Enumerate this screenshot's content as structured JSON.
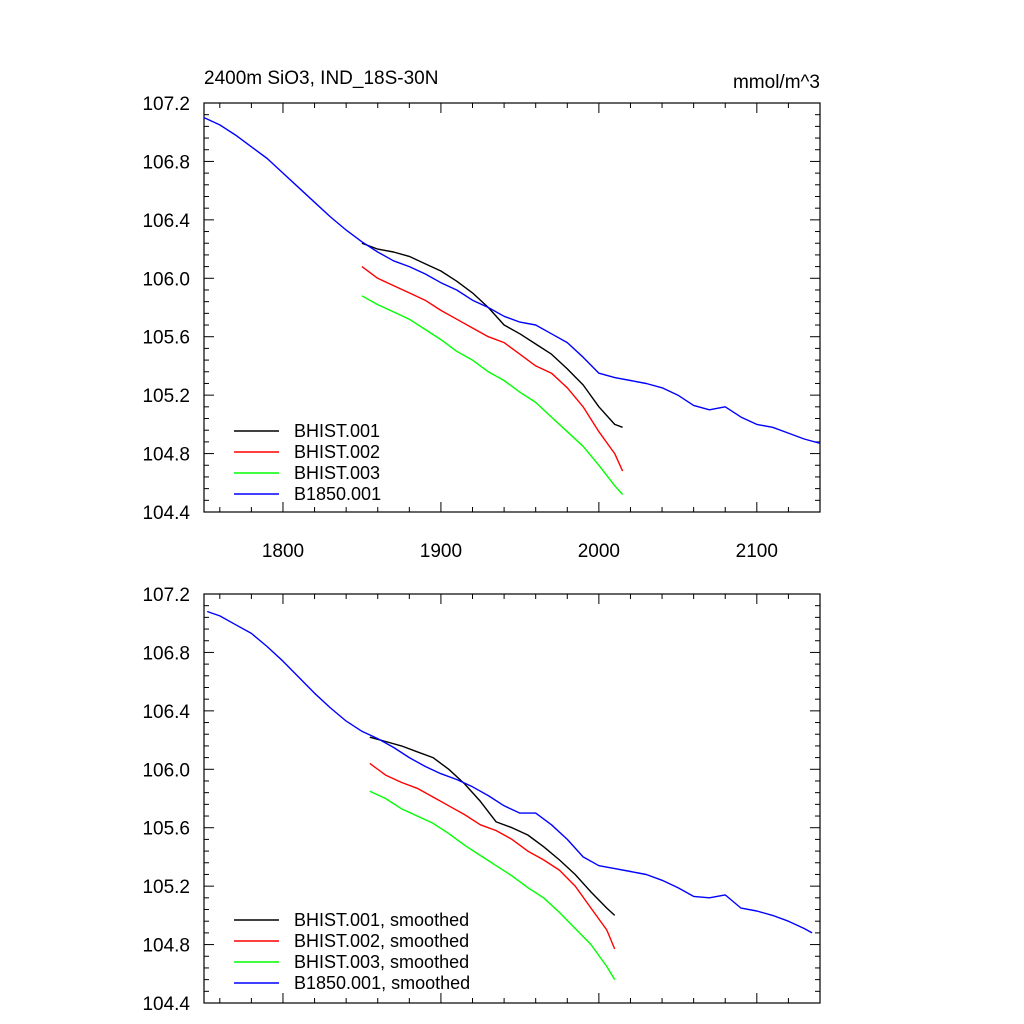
{
  "panels": [
    {
      "id": "top",
      "title_left": "2400m SiO3, IND_18S-30N",
      "title_right": "mmol/m^3",
      "show_xtick_labels": true,
      "chart_data": {
        "type": "line",
        "title": "2400m SiO3, IND_18S-30N",
        "units": "mmol/m^3",
        "xlim": [
          1750,
          2140
        ],
        "ylim": [
          104.4,
          107.2
        ],
        "xticks": [
          "1800",
          "1900",
          "2000",
          "2100"
        ],
        "yticks": [
          "104.4",
          "104.8",
          "105.2",
          "105.6",
          "106.0",
          "106.4",
          "106.8",
          "107.2"
        ],
        "legend_position": "bottom-left",
        "grid": false,
        "series": [
          {
            "name": "BHIST.001",
            "color": "#000000",
            "x": [
              1850,
              1860,
              1870,
              1880,
              1890,
              1900,
              1910,
              1920,
              1930,
              1940,
              1950,
              1960,
              1970,
              1980,
              1990,
              2000,
              2010,
              2015
            ],
            "y": [
              106.24,
              106.2,
              106.18,
              106.15,
              106.1,
              106.05,
              105.98,
              105.9,
              105.8,
              105.68,
              105.62,
              105.55,
              105.48,
              105.38,
              105.27,
              105.12,
              105.0,
              104.98
            ]
          },
          {
            "name": "BHIST.002",
            "color": "#ff0000",
            "x": [
              1850,
              1860,
              1870,
              1880,
              1890,
              1900,
              1910,
              1920,
              1930,
              1940,
              1950,
              1960,
              1970,
              1980,
              1990,
              2000,
              2010,
              2015
            ],
            "y": [
              106.08,
              106.0,
              105.95,
              105.9,
              105.85,
              105.78,
              105.72,
              105.66,
              105.6,
              105.56,
              105.48,
              105.4,
              105.35,
              105.25,
              105.12,
              104.95,
              104.8,
              104.68
            ]
          },
          {
            "name": "BHIST.003",
            "color": "#00ff00",
            "x": [
              1850,
              1860,
              1870,
              1880,
              1890,
              1900,
              1910,
              1920,
              1930,
              1940,
              1950,
              1960,
              1970,
              1980,
              1990,
              2000,
              2010,
              2015
            ],
            "y": [
              105.88,
              105.82,
              105.77,
              105.72,
              105.65,
              105.58,
              105.5,
              105.44,
              105.36,
              105.3,
              105.22,
              105.15,
              105.05,
              104.95,
              104.85,
              104.72,
              104.58,
              104.52
            ]
          },
          {
            "name": "B1850.001",
            "color": "#0000ff",
            "x": [
              1750,
              1760,
              1770,
              1780,
              1790,
              1800,
              1810,
              1820,
              1830,
              1840,
              1850,
              1860,
              1870,
              1880,
              1890,
              1900,
              1910,
              1920,
              1930,
              1940,
              1950,
              1960,
              1970,
              1980,
              1990,
              2000,
              2010,
              2020,
              2030,
              2040,
              2050,
              2060,
              2070,
              2080,
              2090,
              2100,
              2110,
              2120,
              2130,
              2140
            ],
            "y": [
              107.1,
              107.05,
              106.98,
              106.9,
              106.82,
              106.72,
              106.62,
              106.52,
              106.42,
              106.33,
              106.25,
              106.18,
              106.12,
              106.08,
              106.03,
              105.97,
              105.92,
              105.85,
              105.8,
              105.74,
              105.7,
              105.68,
              105.62,
              105.56,
              105.46,
              105.35,
              105.32,
              105.3,
              105.28,
              105.25,
              105.2,
              105.13,
              105.1,
              105.12,
              105.05,
              105.0,
              104.98,
              104.94,
              104.9,
              104.87
            ]
          }
        ]
      }
    },
    {
      "id": "bottom",
      "title_left": "",
      "title_right": "",
      "show_xtick_labels": false,
      "chart_data": {
        "type": "line",
        "title": "",
        "units": "",
        "xlim": [
          1750,
          2140
        ],
        "ylim": [
          104.4,
          107.2
        ],
        "xticks": [
          "1800",
          "1900",
          "2000",
          "2100"
        ],
        "yticks": [
          "104.4",
          "104.8",
          "105.2",
          "105.6",
          "106.0",
          "106.4",
          "106.8",
          "107.2"
        ],
        "legend_position": "bottom-left",
        "grid": false,
        "series": [
          {
            "name": "BHIST.001, smoothed",
            "color": "#000000",
            "x": [
              1855,
              1865,
              1875,
              1885,
              1895,
              1905,
              1915,
              1925,
              1935,
              1945,
              1955,
              1965,
              1975,
              1985,
              1995,
              2005,
              2010
            ],
            "y": [
              106.22,
              106.19,
              106.16,
              106.12,
              106.08,
              106.0,
              105.9,
              105.78,
              105.64,
              105.6,
              105.55,
              105.47,
              105.38,
              105.28,
              105.16,
              105.05,
              105.0
            ]
          },
          {
            "name": "BHIST.002, smoothed",
            "color": "#ff0000",
            "x": [
              1855,
              1865,
              1875,
              1885,
              1895,
              1905,
              1915,
              1925,
              1935,
              1945,
              1955,
              1965,
              1975,
              1985,
              1995,
              2005,
              2010
            ],
            "y": [
              106.04,
              105.96,
              105.91,
              105.87,
              105.81,
              105.75,
              105.69,
              105.62,
              105.58,
              105.52,
              105.44,
              105.38,
              105.31,
              105.2,
              105.05,
              104.9,
              104.77
            ]
          },
          {
            "name": "BHIST.003, smoothed",
            "color": "#00ff00",
            "x": [
              1855,
              1865,
              1875,
              1885,
              1895,
              1905,
              1915,
              1925,
              1935,
              1945,
              1955,
              1965,
              1975,
              1985,
              1995,
              2005,
              2010
            ],
            "y": [
              105.85,
              105.8,
              105.73,
              105.68,
              105.63,
              105.56,
              105.48,
              105.41,
              105.34,
              105.27,
              105.19,
              105.12,
              105.02,
              104.91,
              104.8,
              104.65,
              104.56
            ]
          },
          {
            "name": "B1850.001, smoothed",
            "color": "#0000ff",
            "x": [
              1752,
              1760,
              1770,
              1780,
              1790,
              1800,
              1810,
              1820,
              1830,
              1840,
              1850,
              1860,
              1870,
              1880,
              1890,
              1900,
              1910,
              1920,
              1930,
              1940,
              1950,
              1960,
              1970,
              1980,
              1990,
              2000,
              2010,
              2020,
              2030,
              2040,
              2050,
              2060,
              2070,
              2080,
              2090,
              2100,
              2110,
              2120,
              2130,
              2135
            ],
            "y": [
              107.08,
              107.05,
              106.99,
              106.93,
              106.84,
              106.74,
              106.63,
              106.52,
              106.42,
              106.33,
              106.26,
              106.21,
              106.15,
              106.08,
              106.02,
              105.97,
              105.93,
              105.88,
              105.82,
              105.75,
              105.7,
              105.7,
              105.62,
              105.52,
              105.4,
              105.34,
              105.32,
              105.3,
              105.28,
              105.24,
              105.19,
              105.13,
              105.12,
              105.14,
              105.05,
              105.03,
              105.0,
              104.96,
              104.91,
              104.88
            ]
          }
        ]
      }
    }
  ]
}
